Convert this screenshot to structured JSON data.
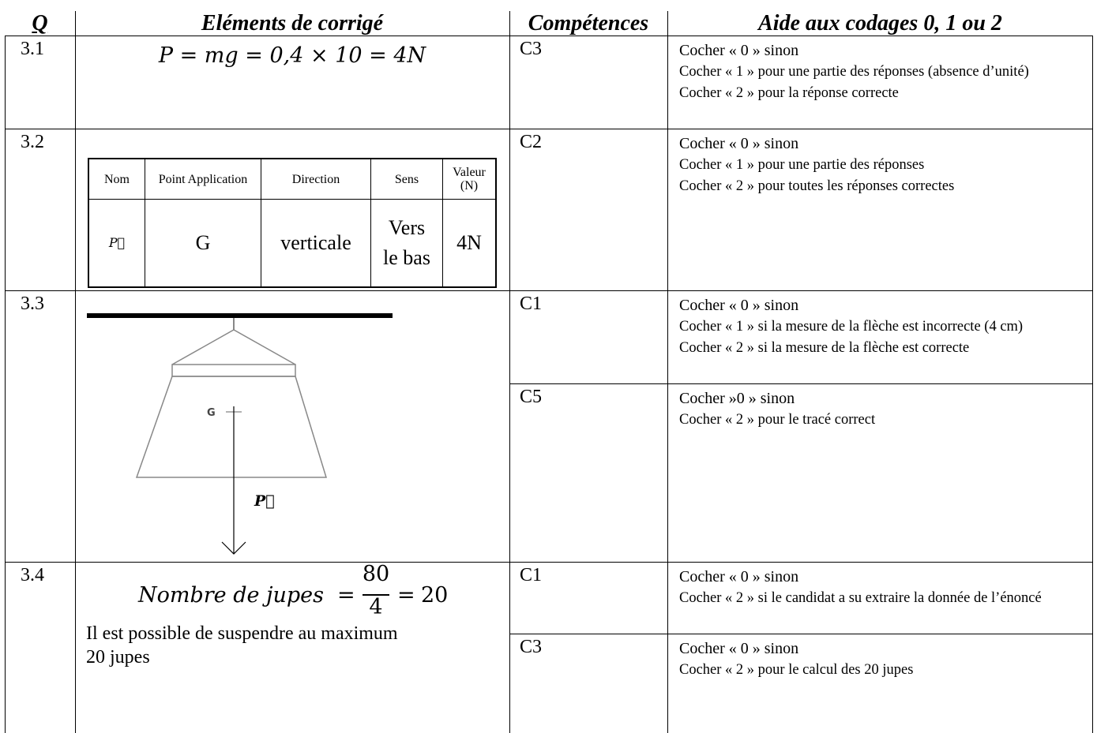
{
  "header": {
    "q": "Q",
    "elements": "Eléments de corrigé",
    "competences": "Compétences",
    "aide": "Aide aux codages 0, 1 ou 2"
  },
  "rows": [
    {
      "q": "3.1",
      "formula": "P = mg = 0,4 × 10 = 4N",
      "criteria": [
        {
          "competence": "C3",
          "aide": [
            "Cocher « 0 » sinon",
            "Cocher « 1 » pour une partie des réponses (absence d’unité)",
            "Cocher « 2 » pour la réponse correcte"
          ]
        }
      ]
    },
    {
      "q": "3.2",
      "table": {
        "headers": [
          "Nom",
          "Point Application",
          "Direction",
          "Sens",
          "Valeur (N)"
        ],
        "row": [
          "P⃗",
          "G",
          "verticale",
          "Vers le bas",
          "4N"
        ]
      },
      "criteria": [
        {
          "competence": "C2",
          "aide": [
            "Cocher « 0 » sinon",
            "Cocher « 1 » pour une partie des réponses",
            "Cocher « 2 » pour toutes les réponses correctes"
          ]
        }
      ]
    },
    {
      "q": "3.3",
      "figure": {
        "point": "G",
        "vector": "P⃗"
      },
      "criteria": [
        {
          "competence": "C1",
          "aide": [
            "Cocher « 0 » sinon",
            "Cocher « 1 » si la mesure de la flèche est incorrecte (4 cm)",
            "Cocher « 2 » si la mesure de la flèche est correcte"
          ]
        },
        {
          "competence": "C5",
          "aide": [
            "Cocher »0 » sinon",
            "Cocher « 2 » pour le tracé correct"
          ]
        }
      ]
    },
    {
      "q": "3.4",
      "formula": {
        "lhs": "Nombre de jupes",
        "equals": "=",
        "numerator": "80",
        "denominator": "4",
        "result": "20"
      },
      "text": "Il est possible de suspendre au maximum 20 jupes",
      "criteria": [
        {
          "competence": "C1",
          "aide": [
            "Cocher « 0 » sinon",
            "Cocher « 2 » si le candidat a su extraire la donnée de l’énoncé"
          ]
        },
        {
          "competence": "C3",
          "aide": [
            "Cocher « 0 » sinon",
            "Cocher « 2 » pour le calcul des 20 jupes"
          ]
        }
      ]
    }
  ]
}
